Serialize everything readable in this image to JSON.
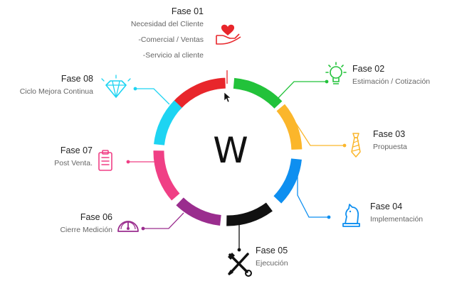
{
  "center": {
    "label": "W"
  },
  "phases": [
    {
      "id": "01",
      "title": "Fase 01",
      "lines": [
        "Necesidad del Cliente",
        "-Comercial / Ventas",
        "-Servicio al cliente"
      ],
      "color": "#e8262b",
      "icon": "heart-hand-icon"
    },
    {
      "id": "02",
      "title": "Fase 02",
      "lines": [
        "Estimación / Cotización"
      ],
      "color": "#22c23a",
      "icon": "lightbulb-icon"
    },
    {
      "id": "03",
      "title": "Fase 03",
      "lines": [
        "Propuesta"
      ],
      "color": "#fbb62b",
      "icon": "tie-icon"
    },
    {
      "id": "04",
      "title": "Fase 04",
      "lines": [
        "Implementación"
      ],
      "color": "#0e8ff0",
      "icon": "chess-knight-icon"
    },
    {
      "id": "05",
      "title": "Fase 05",
      "lines": [
        "Ejecución"
      ],
      "color": "#111111",
      "icon": "tools-icon"
    },
    {
      "id": "06",
      "title": "Fase 06",
      "lines": [
        "Cierre Medición"
      ],
      "color": "#9a2d8e",
      "icon": "gauge-icon"
    },
    {
      "id": "07",
      "title": "Fase 07",
      "lines": [
        "Post Venta."
      ],
      "color": "#f03f85",
      "icon": "clipboard-icon"
    },
    {
      "id": "08",
      "title": "Fase 08",
      "lines": [
        "Ciclo Mejora Continua"
      ],
      "color": "#1ed4f2",
      "icon": "diamond-icon"
    }
  ]
}
